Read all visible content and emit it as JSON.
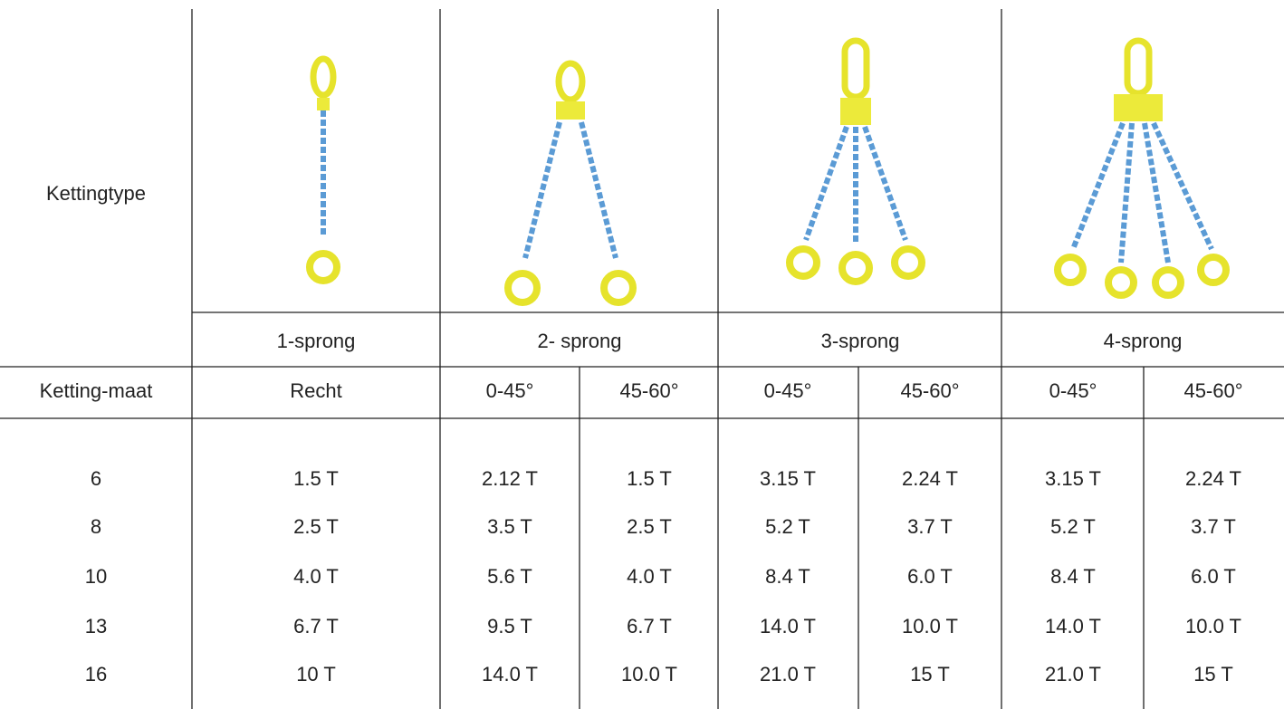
{
  "header": {
    "label": "Kettingtype"
  },
  "types": [
    "1-sprong",
    "2- sprong",
    "3-sprong",
    "4-sprong"
  ],
  "subheader": [
    "Ketting-maat",
    "Recht",
    "0-45°",
    "45-60°",
    "0-45°",
    "45-60°",
    "0-45°",
    "45-60°"
  ],
  "table": {
    "rows": [
      [
        "6",
        "1.5 T",
        "2.12 T",
        "1.5 T",
        "3.15 T",
        "2.24 T",
        "3.15 T",
        "2.24 T"
      ],
      [
        "8",
        "2.5 T",
        "3.5 T",
        "2.5 T",
        "5.2 T",
        "3.7 T",
        "5.2 T",
        "3.7 T"
      ],
      [
        "10",
        "4.0 T",
        "5.6 T",
        "4.0 T",
        "8.4 T",
        "6.0 T",
        "8.4 T",
        "6.0 T"
      ],
      [
        "13",
        "6.7 T",
        "9.5 T",
        "6.7 T",
        "14.0 T",
        "10.0 T",
        "14.0 T",
        "10.0 T"
      ],
      [
        "16",
        "10 T",
        "14.0 T",
        "10.0 T",
        "21.0 T",
        "15 T",
        "21.0 T",
        "15 T"
      ]
    ]
  }
}
